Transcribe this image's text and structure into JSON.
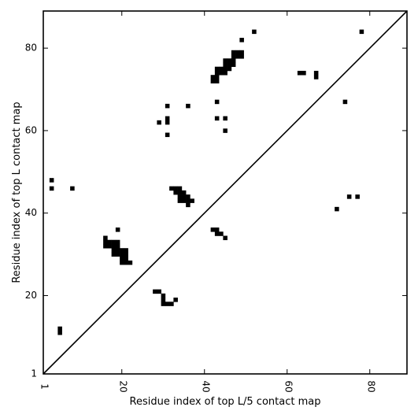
{
  "chart_data": {
    "type": "scatter",
    "title": "",
    "xlabel": "Residue index of top L/5 contact map",
    "ylabel": "Residue index of top L contact map",
    "xlim": [
      1,
      89
    ],
    "ylim": [
      1,
      89
    ],
    "xticks": [
      {
        "value": 1,
        "label": "1"
      },
      {
        "value": 20,
        "label": "20"
      },
      {
        "value": 40,
        "label": "40"
      },
      {
        "value": 60,
        "label": "60"
      },
      {
        "value": 80,
        "label": "80"
      }
    ],
    "yticks": [
      {
        "value": 1,
        "label": "1"
      },
      {
        "value": 20,
        "label": "20"
      },
      {
        "value": 40,
        "label": "40"
      },
      {
        "value": 60,
        "label": "60"
      },
      {
        "value": 80,
        "label": "80"
      }
    ],
    "diagonal": true,
    "grid": false,
    "marker_color": "#000000",
    "points": [
      [
        3,
        48
      ],
      [
        3,
        46
      ],
      [
        8,
        46
      ],
      [
        5,
        11
      ],
      [
        5,
        12
      ],
      [
        19,
        36
      ],
      [
        16,
        34
      ],
      [
        16,
        33
      ],
      [
        17,
        33
      ],
      [
        18,
        33
      ],
      [
        19,
        33
      ],
      [
        16,
        32
      ],
      [
        17,
        32
      ],
      [
        18,
        32
      ],
      [
        19,
        32
      ],
      [
        18,
        31
      ],
      [
        19,
        31
      ],
      [
        20,
        31
      ],
      [
        21,
        31
      ],
      [
        18,
        30
      ],
      [
        19,
        30
      ],
      [
        20,
        30
      ],
      [
        21,
        30
      ],
      [
        20,
        29
      ],
      [
        21,
        29
      ],
      [
        20,
        28
      ],
      [
        21,
        28
      ],
      [
        22,
        28
      ],
      [
        28,
        21
      ],
      [
        29,
        21
      ],
      [
        30,
        20
      ],
      [
        30,
        19
      ],
      [
        33,
        19
      ],
      [
        30,
        18
      ],
      [
        31,
        18
      ],
      [
        32,
        18
      ],
      [
        29,
        62
      ],
      [
        31,
        66
      ],
      [
        31,
        63
      ],
      [
        31,
        62
      ],
      [
        31,
        59
      ],
      [
        36,
        66
      ],
      [
        32,
        46
      ],
      [
        33,
        46
      ],
      [
        34,
        46
      ],
      [
        33,
        45
      ],
      [
        34,
        45
      ],
      [
        35,
        45
      ],
      [
        34,
        44
      ],
      [
        35,
        44
      ],
      [
        36,
        44
      ],
      [
        34,
        43
      ],
      [
        35,
        43
      ],
      [
        36,
        43
      ],
      [
        37,
        43
      ],
      [
        36,
        42
      ],
      [
        42,
        36
      ],
      [
        43,
        36
      ],
      [
        43,
        35
      ],
      [
        44,
        35
      ],
      [
        45,
        34
      ],
      [
        43,
        67
      ],
      [
        43,
        63
      ],
      [
        45,
        63
      ],
      [
        45,
        60
      ],
      [
        42,
        73
      ],
      [
        43,
        73
      ],
      [
        42,
        72
      ],
      [
        43,
        72
      ],
      [
        43,
        75
      ],
      [
        44,
        75
      ],
      [
        43,
        74
      ],
      [
        44,
        74
      ],
      [
        45,
        74
      ],
      [
        45,
        77
      ],
      [
        46,
        77
      ],
      [
        45,
        76
      ],
      [
        46,
        76
      ],
      [
        45,
        75
      ],
      [
        46,
        75
      ],
      [
        47,
        78
      ],
      [
        47,
        77
      ],
      [
        47,
        76
      ],
      [
        47,
        79
      ],
      [
        48,
        79
      ],
      [
        49,
        79
      ],
      [
        48,
        78
      ],
      [
        49,
        78
      ],
      [
        49,
        82
      ],
      [
        52,
        84
      ],
      [
        63,
        74
      ],
      [
        64,
        74
      ],
      [
        67,
        74
      ],
      [
        67,
        73
      ],
      [
        74,
        67
      ],
      [
        72,
        41
      ],
      [
        75,
        44
      ],
      [
        77,
        44
      ],
      [
        78,
        84
      ]
    ]
  }
}
